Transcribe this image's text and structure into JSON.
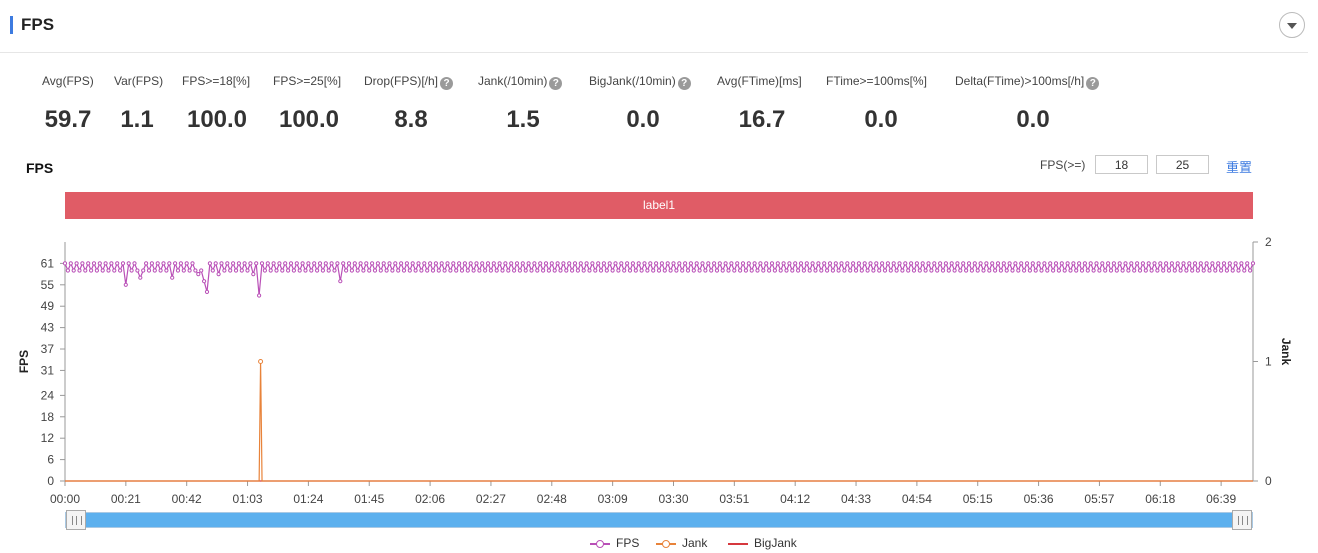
{
  "header": {
    "title": "FPS"
  },
  "metrics": [
    {
      "label": "Avg(FPS)",
      "value": "59.7",
      "help": false
    },
    {
      "label": "Var(FPS)",
      "value": "1.1",
      "help": false
    },
    {
      "label": "FPS>=18[%]",
      "value": "100.0",
      "help": false
    },
    {
      "label": "FPS>=25[%]",
      "value": "100.0",
      "help": false
    },
    {
      "label": "Drop(FPS)[/h]",
      "value": "8.8",
      "help": true
    },
    {
      "label": "Jank(/10min)",
      "value": "1.5",
      "help": true
    },
    {
      "label": "BigJank(/10min)",
      "value": "0.0",
      "help": true
    },
    {
      "label": "Avg(FTime)[ms]",
      "value": "16.7",
      "help": false
    },
    {
      "label": "FTime>=100ms[%]",
      "value": "0.0",
      "help": false
    },
    {
      "label": "Delta(FTime)>100ms[/h]",
      "value": "0.0",
      "help": true
    }
  ],
  "chart_header": {
    "title": "FPS",
    "threshold_label": "FPS(>=)",
    "threshold_low": "18",
    "threshold_high": "25",
    "reset_label": "重置"
  },
  "label_band": {
    "text": "label1",
    "color": "#e05c66"
  },
  "chart_data": {
    "type": "line",
    "x_unit": "mm:ss",
    "x_ticks": [
      "00:00",
      "00:21",
      "00:42",
      "01:03",
      "01:24",
      "01:45",
      "02:06",
      "02:27",
      "02:48",
      "03:09",
      "03:30",
      "03:51",
      "04:12",
      "04:33",
      "04:54",
      "05:15",
      "05:36",
      "05:57",
      "06:18",
      "06:39"
    ],
    "xlim_seconds": [
      0,
      410
    ],
    "y_left": {
      "label": "FPS",
      "ticks": [
        0,
        6,
        12,
        18,
        24,
        31,
        37,
        43,
        49,
        55,
        61
      ],
      "range": [
        0,
        67
      ]
    },
    "y_right": {
      "label": "Jank",
      "ticks": [
        0,
        1,
        2
      ],
      "range": [
        0,
        2
      ]
    },
    "series": [
      {
        "name": "FPS",
        "axis": "left",
        "color": "#b94fb7",
        "markers": true,
        "baseline": 59.7,
        "high": 61,
        "low": 59,
        "sample_step_seconds": 1,
        "dips": [
          {
            "t": 21,
            "value": 55
          },
          {
            "t": 26,
            "value": 57
          },
          {
            "t": 37,
            "value": 57
          },
          {
            "t": 46,
            "value": 58
          },
          {
            "t": 48,
            "value": 56
          },
          {
            "t": 49,
            "value": 53
          },
          {
            "t": 53,
            "value": 58
          },
          {
            "t": 65,
            "value": 58
          },
          {
            "t": 67,
            "value": 52
          },
          {
            "t": 95,
            "value": 56
          }
        ]
      },
      {
        "name": "Jank",
        "axis": "right",
        "color": "#e8833a",
        "markers": false,
        "baseline": 0,
        "events": [
          {
            "t": 67.5,
            "value": 1
          }
        ]
      },
      {
        "name": "BigJank",
        "axis": "right",
        "color": "#d6383e",
        "markers": false,
        "baseline": 0,
        "events": []
      }
    ],
    "legend": "bottom-center",
    "grid": false
  },
  "slider": {
    "range_fraction": [
      0,
      1
    ]
  }
}
